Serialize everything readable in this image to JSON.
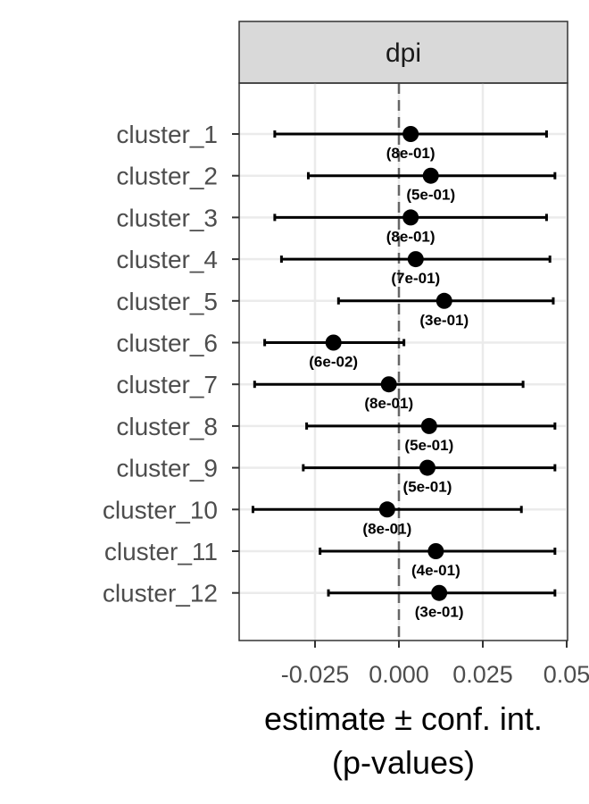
{
  "chart_data": {
    "type": "scatter",
    "facet_label": "dpi",
    "xlabel_lines": [
      "estimate ± conf. int.",
      "(p-values)"
    ],
    "x_ticks": [
      -0.025,
      0.0,
      0.025,
      0.05
    ],
    "x_tick_labels": [
      "-0.025",
      "0.000",
      "0.025",
      "0.05"
    ],
    "xlim": [
      -0.047,
      0.05
    ],
    "reference_line": 0,
    "grid": true,
    "rows": [
      {
        "label": "cluster_1",
        "estimate": 0.0035,
        "low": -0.037,
        "high": 0.044,
        "p_label": "(8e-01)"
      },
      {
        "label": "cluster_2",
        "estimate": 0.0095,
        "low": -0.027,
        "high": 0.0465,
        "p_label": "(5e-01)"
      },
      {
        "label": "cluster_3",
        "estimate": 0.0035,
        "low": -0.037,
        "high": 0.044,
        "p_label": "(8e-01)"
      },
      {
        "label": "cluster_4",
        "estimate": 0.005,
        "low": -0.035,
        "high": 0.045,
        "p_label": "(7e-01)"
      },
      {
        "label": "cluster_5",
        "estimate": 0.0135,
        "low": -0.018,
        "high": 0.046,
        "p_label": "(3e-01)"
      },
      {
        "label": "cluster_6",
        "estimate": -0.0195,
        "low": -0.04,
        "high": 0.0015,
        "p_label": "(6e-02)"
      },
      {
        "label": "cluster_7",
        "estimate": -0.003,
        "low": -0.043,
        "high": 0.037,
        "p_label": "(8e-01)"
      },
      {
        "label": "cluster_8",
        "estimate": 0.009,
        "low": -0.0275,
        "high": 0.0465,
        "p_label": "(5e-01)"
      },
      {
        "label": "cluster_9",
        "estimate": 0.0085,
        "low": -0.0285,
        "high": 0.0465,
        "p_label": "(5e-01)"
      },
      {
        "label": "cluster_10",
        "estimate": -0.0035,
        "low": -0.0435,
        "high": 0.0365,
        "p_label": "(8e-01)"
      },
      {
        "label": "cluster_11",
        "estimate": 0.011,
        "low": -0.0235,
        "high": 0.0465,
        "p_label": "(4e-01)"
      },
      {
        "label": "cluster_12",
        "estimate": 0.012,
        "low": -0.021,
        "high": 0.0465,
        "p_label": "(3e-01)"
      }
    ],
    "colors": {
      "point": "#000000",
      "errorbar": "#000000",
      "reference": "#666666",
      "grid": "#ebebeb",
      "strip_fill": "#d9d9d9",
      "panel_border": "#333333"
    }
  }
}
